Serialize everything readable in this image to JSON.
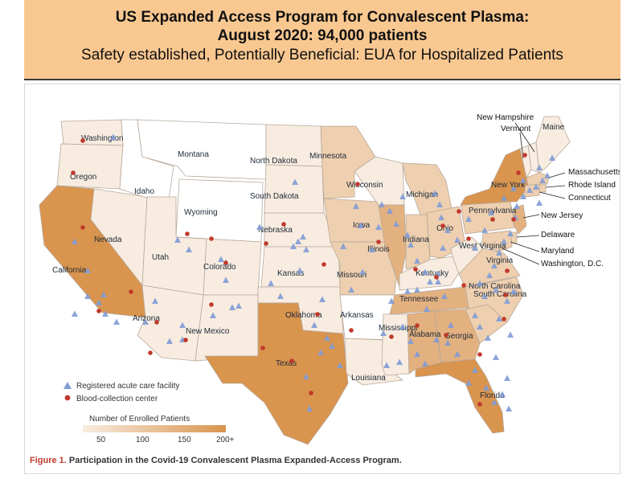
{
  "banner": {
    "title_line1": "US Expanded Access Program for Convalescent Plasma:",
    "title_line2": "August 2020:  94,000 patients",
    "subtitle": "Safety established, Potentially Beneficial: EUA for Hospitalized Patients"
  },
  "colors": {
    "banner_bg": "#f9c891",
    "scale_low": "#f8ece0",
    "scale_high": "#d9944e",
    "facility": "#7f9bd6",
    "blood_center": "#c0392b"
  },
  "legend": {
    "facility_label": "Registered acute care facility",
    "blood_label": "Blood-collection center",
    "scale_title": "Number of Enrolled Patients",
    "scale_ticks": [
      "50",
      "100",
      "150",
      "200+"
    ]
  },
  "caption": {
    "figure_label": "Figure 1.",
    "text": "Participation in the Covid-19 Convalescent Plasma Expanded-Access Program."
  },
  "states": [
    {
      "name": "Washington",
      "level": 1
    },
    {
      "name": "Oregon",
      "level": 1
    },
    {
      "name": "California",
      "level": 4
    },
    {
      "name": "Nevada",
      "level": 1
    },
    {
      "name": "Idaho",
      "level": 0
    },
    {
      "name": "Montana",
      "level": 0
    },
    {
      "name": "Wyoming",
      "level": 0
    },
    {
      "name": "Utah",
      "level": 1
    },
    {
      "name": "Colorado",
      "level": 1
    },
    {
      "name": "Arizona",
      "level": 1
    },
    {
      "name": "New Mexico",
      "level": 1
    },
    {
      "name": "North Dakota",
      "level": 1
    },
    {
      "name": "South Dakota",
      "level": 1
    },
    {
      "name": "Nebraska",
      "level": 1
    },
    {
      "name": "Kansas",
      "level": 1
    },
    {
      "name": "Oklahoma",
      "level": 1
    },
    {
      "name": "Texas",
      "level": 4
    },
    {
      "name": "Minnesota",
      "level": 2
    },
    {
      "name": "Iowa",
      "level": 2
    },
    {
      "name": "Missouri",
      "level": 2
    },
    {
      "name": "Arkansas",
      "level": 0
    },
    {
      "name": "Louisiana",
      "level": 1
    },
    {
      "name": "Wisconsin",
      "level": 1
    },
    {
      "name": "Illinois",
      "level": 3
    },
    {
      "name": "Michigan",
      "level": 2
    },
    {
      "name": "Indiana",
      "level": 2
    },
    {
      "name": "Ohio",
      "level": 2
    },
    {
      "name": "Kentucky",
      "level": 1
    },
    {
      "name": "Tennessee",
      "level": 3
    },
    {
      "name": "Mississippi",
      "level": 1
    },
    {
      "name": "Alabama",
      "level": 3
    },
    {
      "name": "Georgia",
      "level": 3
    },
    {
      "name": "Florida",
      "level": 4
    },
    {
      "name": "South Carolina",
      "level": 2
    },
    {
      "name": "North Carolina",
      "level": 2
    },
    {
      "name": "Virginia",
      "level": 2
    },
    {
      "name": "West Virginia",
      "level": 1
    },
    {
      "name": "Pennsylvania",
      "level": 2
    },
    {
      "name": "New York",
      "level": 4
    },
    {
      "name": "Vermont",
      "level": 1
    },
    {
      "name": "New Hampshire",
      "level": 1
    },
    {
      "name": "Maine",
      "level": 1
    },
    {
      "name": "Massachusetts",
      "level": 2
    },
    {
      "name": "Rhode Island",
      "level": 2
    },
    {
      "name": "Connecticut",
      "level": 2
    },
    {
      "name": "New Jersey",
      "level": 3
    },
    {
      "name": "Delaware",
      "level": 2
    },
    {
      "name": "Maryland",
      "level": 2
    },
    {
      "name": "Washington, D.C.",
      "level": 2
    }
  ]
}
